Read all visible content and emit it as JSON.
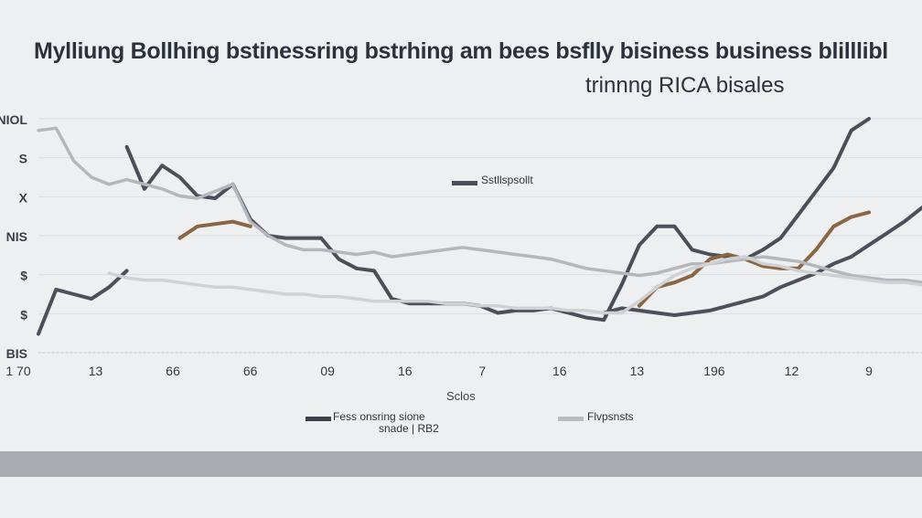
{
  "chart_data": {
    "type": "line",
    "title": "Mylliung Bollhing bstinessring bstrhing am bees bsflly bisiness business blilllibl",
    "subtitle": "trinnng RICA bisales",
    "xlabel": "Sclos",
    "ytick_labels": [
      "NIOL",
      "S",
      "X",
      "NIS",
      "$",
      "$",
      "BIS"
    ],
    "xtick_labels": [
      "1 70",
      "13",
      "66",
      "66",
      "09",
      "16",
      "7",
      "16",
      "13",
      "196",
      "12",
      "9"
    ],
    "grid": true,
    "legend": [
      {
        "label": "Sstllspsollt",
        "color": "#4a4f58"
      },
      {
        "label": "Fess onsring sione\nsnade | RB2",
        "color": "#3b4048"
      },
      {
        "label": "Flvpsnsts",
        "color": "#b8bbc0"
      }
    ],
    "x": [
      0,
      1,
      2,
      3,
      4,
      5,
      6,
      7,
      8,
      9,
      10,
      11,
      12,
      13,
      14,
      15,
      16,
      17,
      18,
      19,
      20,
      21,
      22,
      23,
      24,
      25,
      26,
      27,
      28,
      29,
      30,
      31,
      32,
      33,
      34,
      35,
      36,
      37,
      38,
      39,
      40,
      41,
      42,
      43,
      44,
      45,
      46,
      47,
      48,
      49,
      50
    ],
    "ylim": [
      0,
      100
    ],
    "series": [
      {
        "color": "#4a4f58",
        "values": [
          null,
          null,
          null,
          null,
          null,
          88,
          70,
          80,
          75,
          67,
          66,
          72,
          57,
          50,
          49,
          49,
          49,
          40,
          36,
          35,
          23,
          21,
          21,
          21,
          21,
          20,
          17,
          18,
          18,
          19,
          17,
          15,
          14,
          29,
          46,
          54,
          54,
          44,
          42,
          41,
          40,
          44,
          49,
          59,
          69,
          79,
          95,
          100,
          null,
          null,
          null
        ]
      },
      {
        "color": "#4b505a",
        "values": [
          8,
          27,
          25,
          23,
          28,
          35,
          null,
          null,
          null,
          null,
          null,
          null,
          null,
          null,
          null,
          null,
          null,
          null,
          null,
          null,
          null,
          null,
          null,
          null,
          null,
          null,
          null,
          null,
          null,
          null,
          null,
          null,
          17,
          19,
          18,
          17,
          16,
          17,
          18,
          20,
          22,
          24,
          28,
          31,
          34,
          38,
          41,
          46,
          51,
          56,
          62
        ]
      },
      {
        "color": "#8a6642",
        "values": [
          null,
          null,
          null,
          null,
          null,
          null,
          null,
          null,
          49,
          54,
          55,
          56,
          54,
          null,
          null,
          null,
          null,
          null,
          null,
          null,
          null,
          null,
          null,
          null,
          null,
          null,
          null,
          null,
          null,
          null,
          null,
          null,
          null,
          null,
          20,
          28,
          30,
          33,
          40,
          42,
          40,
          37,
          36,
          36,
          44,
          54,
          58,
          60,
          null,
          null,
          null
        ]
      },
      {
        "color": "#b4b7bc",
        "values": [
          95,
          96,
          82,
          75,
          72,
          74,
          72,
          70,
          67,
          66,
          69,
          72,
          56,
          50,
          46,
          44,
          44,
          43,
          42,
          43,
          41,
          42,
          43,
          44,
          45,
          44,
          43,
          42,
          41,
          40,
          38,
          36,
          35,
          34,
          33,
          34,
          36,
          38,
          38,
          39,
          40,
          41,
          40,
          39,
          37,
          35,
          33,
          32,
          31,
          31,
          30
        ]
      },
      {
        "color": "#cfd1d4",
        "values": [
          null,
          null,
          null,
          null,
          34,
          32,
          31,
          31,
          30,
          29,
          28,
          28,
          27,
          26,
          25,
          25,
          24,
          24,
          23,
          22,
          22,
          22,
          22,
          21,
          21,
          20,
          20,
          19,
          19,
          19,
          18,
          18,
          17,
          17,
          22,
          28,
          33,
          36,
          38,
          40,
          41,
          38,
          37,
          35,
          34,
          33,
          32,
          31,
          30,
          30,
          29
        ]
      }
    ]
  }
}
